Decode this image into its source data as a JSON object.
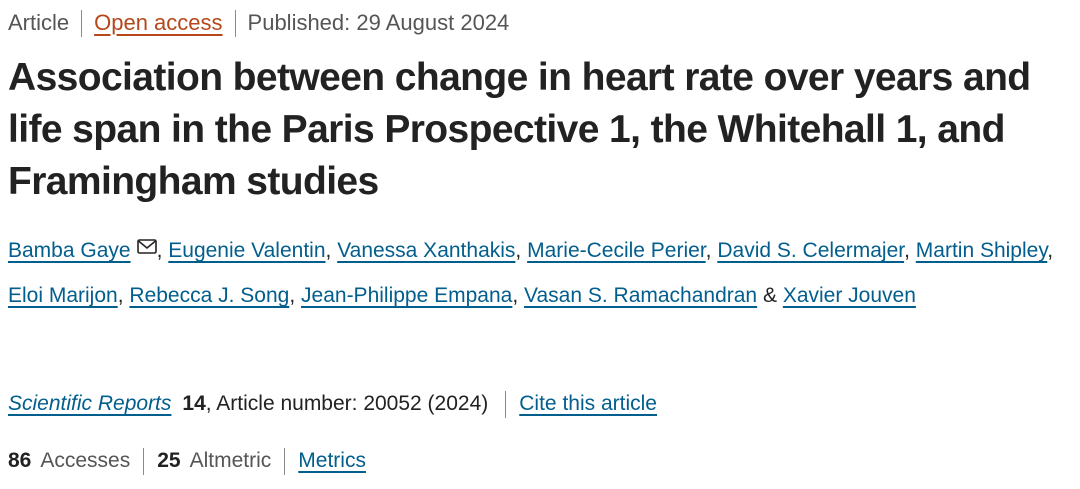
{
  "meta": {
    "type_label": "Article",
    "open_access_label": "Open access",
    "published_label": "Published: 29 August 2024"
  },
  "title": "Association between change in heart rate over years and life span in the Paris Prospective 1, the Whitehall 1, and Framingham studies",
  "authors": {
    "list": [
      "Bamba Gaye",
      "Eugenie Valentin",
      "Vanessa Xanthakis",
      "Marie-Cecile Perier",
      "David S. Celermajer",
      "Martin Shipley",
      "Eloi Marijon",
      "Rebecca J. Song",
      "Jean-Philippe Empana",
      "Vasan S. Ramachandran",
      "Xavier Jouven"
    ],
    "comma": ",",
    "and_label": "&",
    "mail_icon": "mail-icon"
  },
  "citation": {
    "journal": "Scientific Reports",
    "volume": "14",
    "article_number": ", Article number: 20052 (2024)",
    "cite_label": "Cite this article"
  },
  "metrics": {
    "accesses_count": "86",
    "accesses_label": "Accesses",
    "altmetric_count": "25",
    "altmetric_label": "Altmetric",
    "metrics_link": "Metrics"
  },
  "colors": {
    "link": "#025e8d",
    "open_access": "#b5471b",
    "text": "#222222",
    "muted": "#555555"
  }
}
